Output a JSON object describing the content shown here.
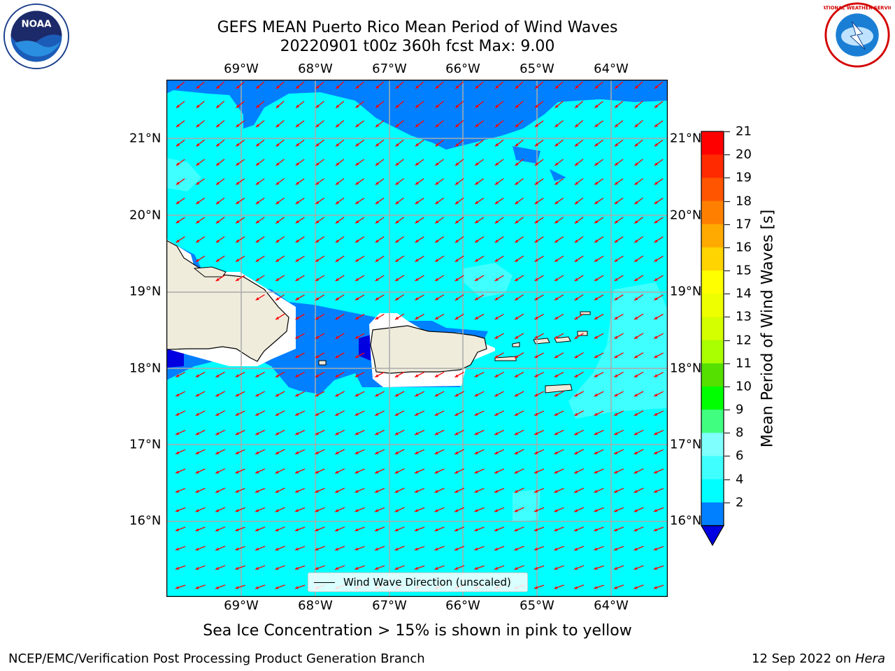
{
  "title": {
    "line1": "GEFS MEAN Puerto Rico Mean Period of Wind Waves",
    "line2": "20220901 t00z 360h fcst   Max: 9.00"
  },
  "logos": {
    "left": {
      "text": "NOAA",
      "ring_top": "NATIONAL OCEANIC AND ATMOSPHERIC ADMINISTRATION",
      "ring_bottom": "U.S. DEPARTMENT OF COMMERCE",
      "icon": "noaa-logo-icon"
    },
    "right": {
      "text": "NATIONAL WEATHER SERVICE",
      "icon": "nws-logo-icon"
    }
  },
  "map": {
    "lon_labels": [
      "69°W",
      "68°W",
      "67°W",
      "66°W",
      "65°W",
      "64°W"
    ],
    "lat_labels": [
      "21°N",
      "20°N",
      "19°N",
      "18°N",
      "17°N",
      "16°N"
    ],
    "legend_label": "Wind Wave Direction (unscaled)",
    "colors": {
      "ocean_4_6": "#00ffff",
      "ocean_2_4": "#0080ff",
      "ocean_6_8": "#40ffff",
      "land": "#efecdc",
      "arrow": "#ff0000"
    }
  },
  "colorbar": {
    "label": "Mean Period of Wind Waves [s]",
    "ticks": [
      "21",
      "20",
      "19",
      "18",
      "17",
      "16",
      "15",
      "14",
      "13",
      "12",
      "11",
      "10",
      "9",
      "8",
      "6",
      "4",
      "2"
    ],
    "colors": [
      "#ff0000",
      "#ff2a00",
      "#ff5500",
      "#ff8000",
      "#ffaa00",
      "#ffd400",
      "#ffff00",
      "#eeff00",
      "#d4ff00",
      "#aaff00",
      "#55e000",
      "#00ff00",
      "#40ff80",
      "#80ffff",
      "#40ffff",
      "#00ffff",
      "#0080ff"
    ],
    "under_color": "#0000e0"
  },
  "note": "Sea Ice Concentration > 15% is shown in pink to yellow",
  "footer": {
    "left": "NCEP/EMC/Verification Post Processing Product Generation Branch",
    "date": "12 Sep 2022 on ",
    "host": "Hera"
  }
}
